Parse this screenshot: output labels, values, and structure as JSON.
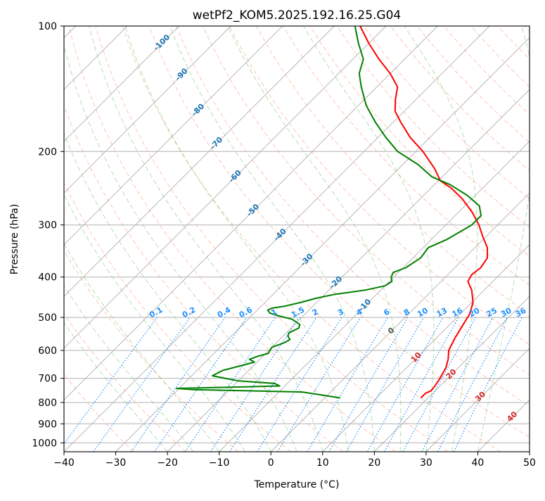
{
  "chart_data": {
    "type": "line",
    "chart_kind": "skew-T log-P diagram",
    "title": "wetPf2_KOM5.2025.192.16.25.G04",
    "xlabel": "Temperature (°C)",
    "ylabel": "Pressure (hPa)",
    "xlim": [
      -40,
      50
    ],
    "ylim_hpa": [
      1050,
      100
    ],
    "y_scale": "log",
    "skew_degrees": 45,
    "grid": true,
    "x_ticks": [
      -40,
      -30,
      -20,
      -10,
      0,
      10,
      20,
      30,
      40,
      50
    ],
    "y_ticks": [
      100,
      200,
      300,
      400,
      500,
      600,
      700,
      800,
      900,
      1000
    ],
    "x_tick_labels": [
      "−40",
      "−30",
      "−20",
      "−10",
      "0",
      "10",
      "20",
      "30",
      "40",
      "50"
    ],
    "y_tick_labels": [
      "100",
      "200",
      "300",
      "400",
      "500",
      "600",
      "700",
      "800",
      "900",
      "1000"
    ],
    "colors": {
      "temperature": "#ff0000",
      "dewpoint": "#008000",
      "isotherm_labels": "#1f77b4",
      "mixing_ratio": "#1e90ff",
      "dry_adiabat": "#ff7f50",
      "moist_adiabat": "#2ca02c",
      "moist_labels": "#d62728",
      "grid": "#b0b0b0"
    },
    "series": [
      {
        "key": "temperature",
        "points": [
          {
            "p": 780,
            "t": 18.6
          },
          {
            "p": 760,
            "t": 18.6
          },
          {
            "p": 750,
            "t": 19.2
          },
          {
            "p": 730,
            "t": 19.0
          },
          {
            "p": 700,
            "t": 18.5
          },
          {
            "p": 660,
            "t": 17.6
          },
          {
            "p": 630,
            "t": 16.4
          },
          {
            "p": 600,
            "t": 14.8
          },
          {
            "p": 560,
            "t": 13.6
          },
          {
            "p": 520,
            "t": 12.6
          },
          {
            "p": 490,
            "t": 11.8
          },
          {
            "p": 460,
            "t": 10.2
          },
          {
            "p": 430,
            "t": 7.6
          },
          {
            "p": 410,
            "t": 5.2
          },
          {
            "p": 395,
            "t": 4.6
          },
          {
            "p": 380,
            "t": 5.0
          },
          {
            "p": 360,
            "t": 4.4
          },
          {
            "p": 340,
            "t": 2.4
          },
          {
            "p": 320,
            "t": -0.6
          },
          {
            "p": 300,
            "t": -3.6
          },
          {
            "p": 280,
            "t": -7.3
          },
          {
            "p": 260,
            "t": -11.8
          },
          {
            "p": 245,
            "t": -16.0
          },
          {
            "p": 235,
            "t": -19.6
          },
          {
            "p": 220,
            "t": -23.0
          },
          {
            "p": 200,
            "t": -28.6
          },
          {
            "p": 185,
            "t": -33.8
          },
          {
            "p": 170,
            "t": -38.6
          },
          {
            "p": 160,
            "t": -41.8
          },
          {
            "p": 150,
            "t": -44.0
          },
          {
            "p": 140,
            "t": -46.0
          },
          {
            "p": 130,
            "t": -50.0
          },
          {
            "p": 120,
            "t": -55.0
          },
          {
            "p": 110,
            "t": -60.0
          },
          {
            "p": 100,
            "t": -65.0
          }
        ]
      },
      {
        "key": "dewpoint",
        "points": [
          {
            "p": 780,
            "t": 3.0
          },
          {
            "p": 765,
            "t": -2.0
          },
          {
            "p": 755,
            "t": -5.5
          },
          {
            "p": 745,
            "t": -27.0
          },
          {
            "p": 740,
            "t": -30.5
          },
          {
            "p": 735,
            "t": -20.0
          },
          {
            "p": 730,
            "t": -11.0
          },
          {
            "p": 720,
            "t": -12.5
          },
          {
            "p": 710,
            "t": -20.0
          },
          {
            "p": 690,
            "t": -26.0
          },
          {
            "p": 670,
            "t": -25.0
          },
          {
            "p": 650,
            "t": -22.0
          },
          {
            "p": 640,
            "t": -20.5
          },
          {
            "p": 630,
            "t": -22.0
          },
          {
            "p": 620,
            "t": -21.0
          },
          {
            "p": 610,
            "t": -19.5
          },
          {
            "p": 590,
            "t": -20.0
          },
          {
            "p": 575,
            "t": -18.5
          },
          {
            "p": 565,
            "t": -18.0
          },
          {
            "p": 555,
            "t": -19.0
          },
          {
            "p": 545,
            "t": -19.5
          },
          {
            "p": 530,
            "t": -18.5
          },
          {
            "p": 520,
            "t": -19.0
          },
          {
            "p": 505,
            "t": -21.5
          },
          {
            "p": 495,
            "t": -25.0
          },
          {
            "p": 488,
            "t": -27.0
          },
          {
            "p": 480,
            "t": -28.0
          },
          {
            "p": 475,
            "t": -27.5
          },
          {
            "p": 470,
            "t": -25.5
          },
          {
            "p": 460,
            "t": -23.0
          },
          {
            "p": 450,
            "t": -21.0
          },
          {
            "p": 440,
            "t": -18.0
          },
          {
            "p": 430,
            "t": -13.0
          },
          {
            "p": 420,
            "t": -10.0
          },
          {
            "p": 410,
            "t": -9.5
          },
          {
            "p": 400,
            "t": -10.5
          },
          {
            "p": 390,
            "t": -11.0
          },
          {
            "p": 380,
            "t": -9.5
          },
          {
            "p": 360,
            "t": -8.5
          },
          {
            "p": 340,
            "t": -9.0
          },
          {
            "p": 325,
            "t": -7.0
          },
          {
            "p": 300,
            "t": -5.0
          },
          {
            "p": 285,
            "t": -5.0
          },
          {
            "p": 270,
            "t": -7.2
          },
          {
            "p": 255,
            "t": -11.5
          },
          {
            "p": 240,
            "t": -17.0
          },
          {
            "p": 230,
            "t": -22.0
          },
          {
            "p": 215,
            "t": -27.0
          },
          {
            "p": 200,
            "t": -33.5
          },
          {
            "p": 185,
            "t": -38.5
          },
          {
            "p": 170,
            "t": -43.5
          },
          {
            "p": 155,
            "t": -48.5
          },
          {
            "p": 140,
            "t": -53.0
          },
          {
            "p": 130,
            "t": -56.0
          },
          {
            "p": 120,
            "t": -58.0
          },
          {
            "p": 110,
            "t": -62.0
          },
          {
            "p": 100,
            "t": -66.0
          }
        ]
      }
    ],
    "isotherm_label_values": [
      "-100",
      "-90",
      "-80",
      "-70",
      "-60",
      "-50",
      "-40",
      "-30",
      "-20",
      "-10"
    ],
    "isotherm_label_pressures": [
      109,
      130,
      158,
      190,
      228,
      275,
      315,
      362,
      410,
      465
    ],
    "mixing_ratio_g_per_kg": [
      0.1,
      0.2,
      0.4,
      0.6,
      1,
      1.5,
      2,
      3,
      4,
      6,
      8,
      10,
      13,
      16,
      20,
      25,
      30,
      36
    ],
    "mixing_ratio_labels": [
      "0.1",
      "0.2",
      "0.4",
      "0.6",
      "1",
      "1.5",
      "2",
      "3",
      "4",
      "6",
      "8",
      "10",
      "13",
      "16",
      "20",
      "25",
      "30",
      "36"
    ],
    "moist_adiabat_labels": [
      "0",
      "10",
      "20",
      "30",
      "40"
    ],
    "moist_adiabat_label_values": [
      0,
      10,
      20,
      30,
      40
    ],
    "moist_adiabat_label_pressures": [
      535,
      620,
      680,
      770,
      860
    ],
    "dry_adiabat_thetas_c": [
      -30,
      -20,
      -10,
      0,
      10,
      20,
      30,
      40,
      50,
      60,
      70,
      80,
      90,
      100,
      110,
      120,
      130,
      140,
      150,
      160,
      170,
      180,
      190,
      200,
      210,
      220
    ],
    "moist_adiabat_starts_c": [
      -20,
      -15,
      -10,
      -5,
      0,
      5,
      10,
      15,
      20,
      25,
      30,
      35,
      40
    ]
  }
}
